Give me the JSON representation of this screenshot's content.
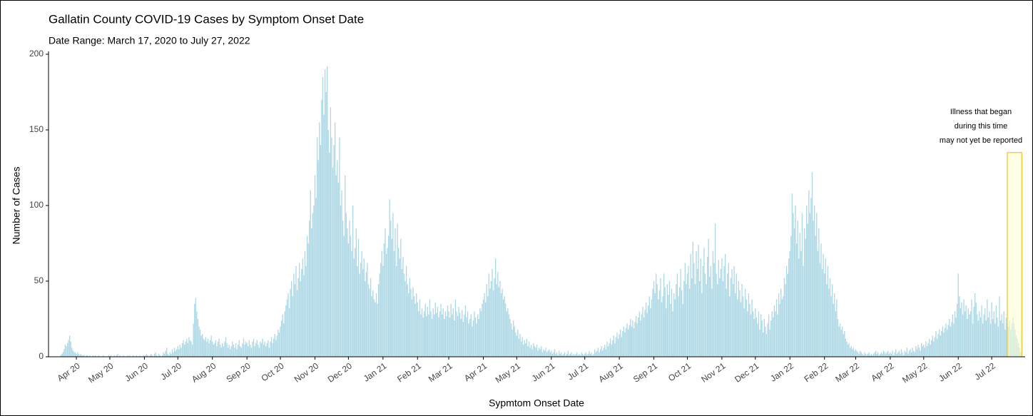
{
  "chart_data": {
    "type": "bar",
    "title": "Gallatin County COVID-19 Cases by Symptom Onset Date",
    "subtitle": "Date Range: March 17, 2020 to July 27, 2022",
    "xlabel": "Sypmtom Onset Date",
    "ylabel": "Number of Cases",
    "color": "#add8e6",
    "values": [
      0,
      1,
      2,
      3,
      5,
      8,
      7,
      9,
      11,
      14,
      10,
      6,
      4,
      3,
      3,
      2,
      3,
      2,
      1,
      2,
      1,
      1,
      1,
      0,
      1,
      1,
      0,
      1,
      0,
      0,
      1,
      0,
      1,
      0,
      0,
      1,
      0,
      0,
      0,
      1,
      0,
      0,
      0,
      0,
      1,
      0,
      1,
      0,
      0,
      1,
      0,
      1,
      2,
      0,
      1,
      0,
      0,
      1,
      0,
      0,
      0,
      1,
      0,
      1,
      0,
      0,
      1,
      0,
      0,
      1,
      0,
      0,
      1,
      0,
      0,
      1,
      0,
      1,
      2,
      1,
      0,
      1,
      2,
      1,
      0,
      2,
      3,
      1,
      0,
      2,
      1,
      0,
      1,
      3,
      2,
      4,
      6,
      2,
      1,
      3,
      2,
      5,
      3,
      6,
      4,
      5,
      7,
      5,
      8,
      6,
      9,
      11,
      8,
      10,
      12,
      9,
      13,
      11,
      10,
      8,
      22,
      35,
      39,
      30,
      25,
      20,
      18,
      14,
      15,
      12,
      11,
      13,
      10,
      12,
      9,
      11,
      14,
      10,
      8,
      9,
      11,
      7,
      10,
      12,
      8,
      6,
      9,
      7,
      10,
      13,
      9,
      6,
      8,
      5,
      7,
      10,
      8,
      6,
      9,
      5,
      8,
      11,
      7,
      6,
      9,
      12,
      8,
      10,
      9,
      7,
      11,
      8,
      6,
      10,
      12,
      7,
      9,
      11,
      8,
      6,
      10,
      9,
      12,
      8,
      10,
      7,
      9,
      11,
      6,
      10,
      13,
      9,
      12,
      15,
      11,
      14,
      18,
      16,
      20,
      24,
      28,
      22,
      30,
      34,
      38,
      42,
      32,
      45,
      50,
      40,
      55,
      48,
      60,
      44,
      52,
      62,
      50,
      58,
      65,
      54,
      70,
      60,
      80,
      75,
      90,
      110,
      85,
      95,
      100,
      120,
      105,
      145,
      130,
      155,
      140,
      170,
      185,
      160,
      190,
      175,
      192,
      150,
      135,
      165,
      145,
      125,
      140,
      155,
      120,
      130,
      115,
      145,
      100,
      110,
      90,
      80,
      120,
      95,
      85,
      75,
      90,
      80,
      70,
      100,
      65,
      72,
      85,
      60,
      78,
      55,
      62,
      70,
      58,
      65,
      50,
      56,
      62,
      48,
      45,
      52,
      40,
      44,
      38,
      36,
      42,
      35,
      48,
      55,
      62,
      70,
      60,
      75,
      85,
      68,
      72,
      80,
      104,
      90,
      78,
      95,
      70,
      85,
      60,
      88,
      72,
      65,
      78,
      58,
      66,
      55,
      50,
      60,
      48,
      42,
      52,
      45,
      38,
      46,
      40,
      35,
      42,
      36,
      30,
      38,
      28,
      32,
      26,
      30,
      35,
      27,
      33,
      28,
      38,
      30,
      25,
      32,
      28,
      36,
      29,
      33,
      26,
      30,
      35,
      28,
      32,
      25,
      30,
      27,
      34,
      30,
      26,
      35,
      28,
      32,
      24,
      38,
      30,
      27,
      33,
      29,
      25,
      31,
      23,
      28,
      34,
      26,
      30,
      22,
      25,
      28,
      20,
      24,
      30,
      26,
      22,
      28,
      25,
      32,
      30,
      35,
      38,
      42,
      36,
      48,
      40,
      55,
      45,
      50,
      58,
      44,
      52,
      65,
      48,
      56,
      46,
      50,
      42,
      45,
      38,
      40,
      35,
      30,
      32,
      28,
      25,
      22,
      18,
      24,
      20,
      16,
      14,
      18,
      12,
      15,
      10,
      13,
      8,
      11,
      9,
      12,
      7,
      10,
      6,
      8,
      5,
      9,
      7,
      6,
      8,
      4,
      6,
      5,
      7,
      3,
      5,
      4,
      6,
      3,
      4,
      5,
      3,
      4,
      2,
      3,
      5,
      2,
      3,
      1,
      4,
      2,
      3,
      1,
      2,
      3,
      1,
      2,
      4,
      1,
      2,
      3,
      1,
      2,
      1,
      2,
      3,
      1,
      2,
      1,
      3,
      2,
      1,
      2,
      3,
      1,
      2,
      4,
      2,
      3,
      1,
      2,
      5,
      3,
      4,
      6,
      3,
      5,
      7,
      4,
      6,
      8,
      5,
      10,
      7,
      9,
      12,
      8,
      11,
      14,
      9,
      13,
      16,
      12,
      15,
      18,
      13,
      17,
      20,
      16,
      19,
      22,
      18,
      21,
      25,
      20,
      24,
      19,
      23,
      27,
      22,
      26,
      30,
      24,
      28,
      33,
      26,
      31,
      36,
      29,
      34,
      40,
      32,
      38,
      45,
      50,
      42,
      55,
      48,
      38,
      44,
      52,
      36,
      40,
      55,
      46,
      32,
      48,
      41,
      50,
      35,
      45,
      30,
      42,
      38,
      48,
      55,
      40,
      46,
      58,
      44,
      35,
      50,
      62,
      48,
      55,
      60,
      45,
      68,
      52,
      76,
      62,
      48,
      70,
      58,
      74,
      50,
      65,
      42,
      60,
      72,
      55,
      48,
      66,
      78,
      53,
      60,
      45,
      70,
      62,
      88,
      55,
      48,
      64,
      52,
      58,
      65,
      50,
      60,
      68,
      45,
      55,
      62,
      40,
      52,
      58,
      48,
      60,
      42,
      55,
      38,
      50,
      44,
      36,
      48,
      40,
      32,
      45,
      38,
      30,
      42,
      35,
      28,
      38,
      30,
      25,
      32,
      26,
      22,
      30,
      18,
      28,
      24,
      16,
      25,
      20,
      15,
      22,
      28,
      18,
      24,
      30,
      26,
      34,
      30,
      38,
      28,
      42,
      35,
      45,
      38,
      40,
      52,
      48,
      60,
      55,
      65,
      70,
      80,
      108,
      95,
      85,
      100,
      75,
      90,
      65,
      82,
      70,
      95,
      60,
      85,
      78,
      100,
      88,
      110,
      95,
      105,
      122,
      90,
      100,
      80,
      95,
      70,
      85,
      62,
      75,
      58,
      68,
      55,
      65,
      48,
      60,
      45,
      52,
      40,
      48,
      35,
      42,
      30,
      38,
      25,
      20,
      22,
      18,
      20,
      15,
      17,
      12,
      10,
      8,
      9,
      6,
      7,
      5,
      6,
      4,
      5,
      4,
      3,
      2,
      4,
      3,
      2,
      1,
      3,
      2,
      1,
      2,
      3,
      1,
      2,
      1,
      2,
      3,
      4,
      2,
      3,
      1,
      2,
      3,
      2,
      4,
      3,
      2,
      3,
      4,
      2,
      3,
      2,
      4,
      1,
      3,
      5,
      2,
      3,
      4,
      2,
      5,
      3,
      1,
      4,
      3,
      6,
      2,
      4,
      5,
      3,
      6,
      4,
      3,
      7,
      5,
      8,
      6,
      4,
      9,
      7,
      8,
      6,
      10,
      7,
      9,
      12,
      8,
      11,
      14,
      10,
      13,
      17,
      12,
      15,
      18,
      14,
      17,
      20,
      16,
      19,
      22,
      18,
      21,
      25,
      20,
      23,
      28,
      22,
      30,
      26,
      35,
      55,
      40,
      32,
      36,
      28,
      38,
      30,
      34,
      25,
      32,
      28,
      30,
      38,
      22,
      33,
      42,
      36,
      28,
      24,
      30,
      26,
      34,
      22,
      28,
      32,
      24,
      38,
      26,
      30,
      22,
      36,
      25,
      30,
      22,
      34,
      26,
      20,
      40,
      24,
      28,
      22,
      30,
      18,
      26,
      22,
      20,
      24,
      18,
      22,
      26,
      22,
      18,
      14,
      12,
      9,
      6,
      3
    ],
    "xlim": [
      -10,
      866
    ],
    "xticks": [
      {
        "value": 15,
        "label": "Apr 20"
      },
      {
        "value": 45,
        "label": "May 20"
      },
      {
        "value": 76,
        "label": "Jun 20"
      },
      {
        "value": 106,
        "label": "Jul 20"
      },
      {
        "value": 137,
        "label": "Aug 20"
      },
      {
        "value": 168,
        "label": "Sep 20"
      },
      {
        "value": 198,
        "label": "Oct 20"
      },
      {
        "value": 229,
        "label": "Nov 20"
      },
      {
        "value": 259,
        "label": "Dec 20"
      },
      {
        "value": 290,
        "label": "Jan 21"
      },
      {
        "value": 321,
        "label": "Feb 21"
      },
      {
        "value": 349,
        "label": "Mar 21"
      },
      {
        "value": 380,
        "label": "Apr 21"
      },
      {
        "value": 410,
        "label": "May 21"
      },
      {
        "value": 441,
        "label": "Jun 21"
      },
      {
        "value": 471,
        "label": "Jul 21"
      },
      {
        "value": 502,
        "label": "Aug 21"
      },
      {
        "value": 533,
        "label": "Sep 21"
      },
      {
        "value": 563,
        "label": "Oct 21"
      },
      {
        "value": 594,
        "label": "Nov 21"
      },
      {
        "value": 624,
        "label": "Dec 21"
      },
      {
        "value": 655,
        "label": "Jan 22"
      },
      {
        "value": 686,
        "label": "Feb 22"
      },
      {
        "value": 714,
        "label": "Mar 22"
      },
      {
        "value": 745,
        "label": "Apr 22"
      },
      {
        "value": 775,
        "label": "May 22"
      },
      {
        "value": 806,
        "label": "Jun 22"
      },
      {
        "value": 836,
        "label": "Jul 22"
      }
    ],
    "ylim": [
      0,
      200
    ],
    "yticks": [
      0,
      50,
      100,
      150,
      200
    ],
    "annotation": {
      "lines": [
        "Illness that began",
        "during this time",
        "may not yet be reported"
      ],
      "x": [
        850,
        863
      ],
      "y": 135,
      "fill": "#ffffd0",
      "stroke": "#f0b400"
    }
  }
}
